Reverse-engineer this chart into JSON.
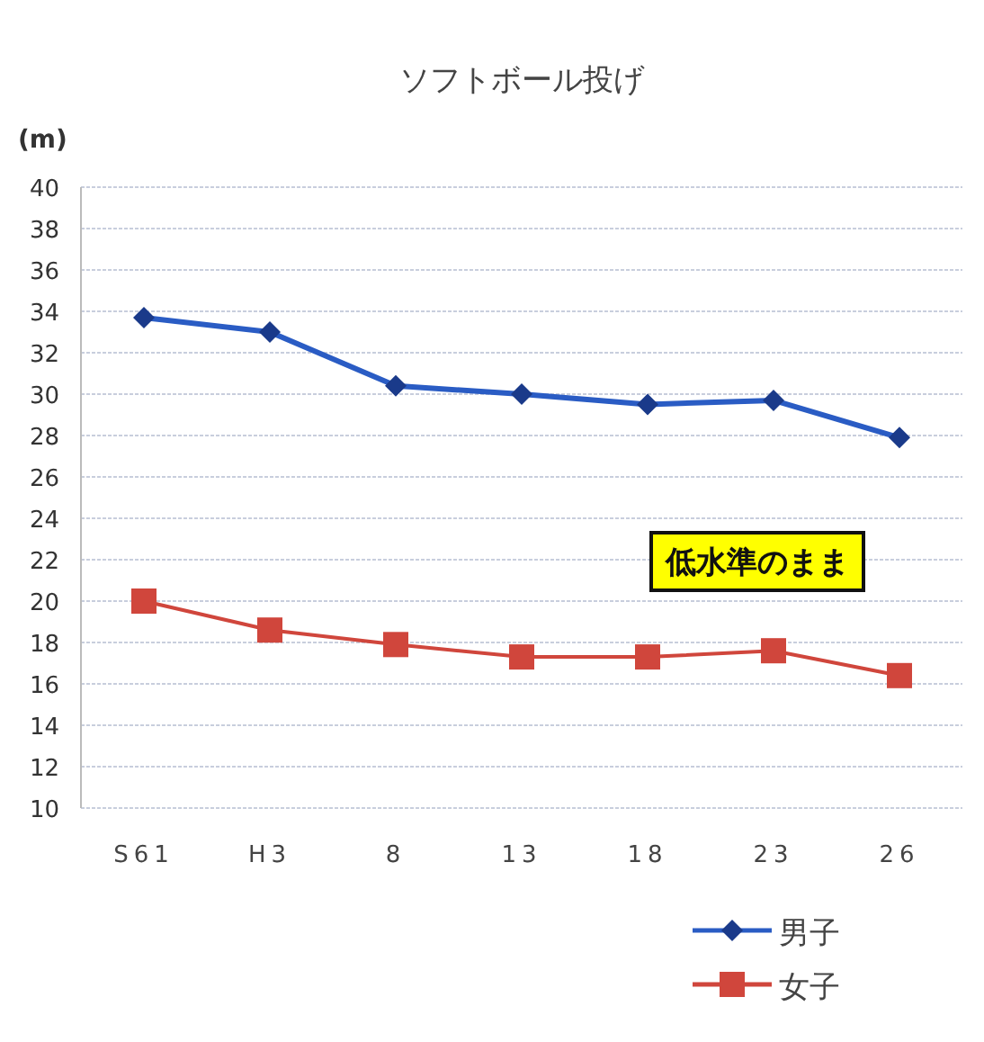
{
  "chart_data": {
    "type": "line",
    "title": "ソフトボール投げ",
    "ylabel": "(m)",
    "categories": [
      "S61",
      "H3",
      "8",
      "13",
      "18",
      "23",
      "26"
    ],
    "series": [
      {
        "name": "男子",
        "color": "#2a5cc4",
        "marker": "diamond",
        "values": [
          33.7,
          33.0,
          30.4,
          30.0,
          29.5,
          29.7,
          27.9
        ]
      },
      {
        "name": "女子",
        "color": "#d0463c",
        "marker": "square",
        "values": [
          20.0,
          18.6,
          17.9,
          17.3,
          17.3,
          17.6,
          16.4
        ]
      }
    ],
    "ylim": [
      10,
      40
    ],
    "yticks": [
      10,
      12,
      14,
      16,
      18,
      20,
      22,
      24,
      26,
      28,
      30,
      32,
      34,
      36,
      38,
      40
    ],
    "grid": "y",
    "legend": "bottom right",
    "annotations": [
      "低水準のまま"
    ]
  }
}
